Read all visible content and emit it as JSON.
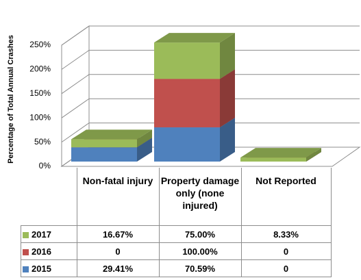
{
  "chart_data": {
    "type": "bar3d_stacked",
    "y_label": "Percentage of Total Annual Crashes",
    "categories": [
      "Non-fatal injury",
      "Property damage only (none injured)",
      "Not Reported"
    ],
    "series": [
      {
        "name": "2015",
        "color": "#4f81bd",
        "values": [
          29.41,
          70.59,
          0
        ],
        "value_labels": [
          "29.41%",
          "70.59%",
          "0"
        ]
      },
      {
        "name": "2016",
        "color": "#c0504d",
        "values": [
          0,
          100,
          0
        ],
        "value_labels": [
          "0",
          "100.00%",
          "0"
        ]
      },
      {
        "name": "2017",
        "color": "#9bbb59",
        "values": [
          16.67,
          75,
          8.33
        ],
        "value_labels": [
          "16.67%",
          "75.00%",
          "8.33%"
        ]
      }
    ],
    "ylim": [
      0,
      250
    ],
    "yticks": [
      {
        "value": 0,
        "label": "0%"
      },
      {
        "value": 50,
        "label": "50%"
      },
      {
        "value": 100,
        "label": "100%"
      },
      {
        "value": 150,
        "label": "150%"
      },
      {
        "value": 200,
        "label": "200%"
      },
      {
        "value": 250,
        "label": "250%"
      }
    ],
    "grid": true
  }
}
